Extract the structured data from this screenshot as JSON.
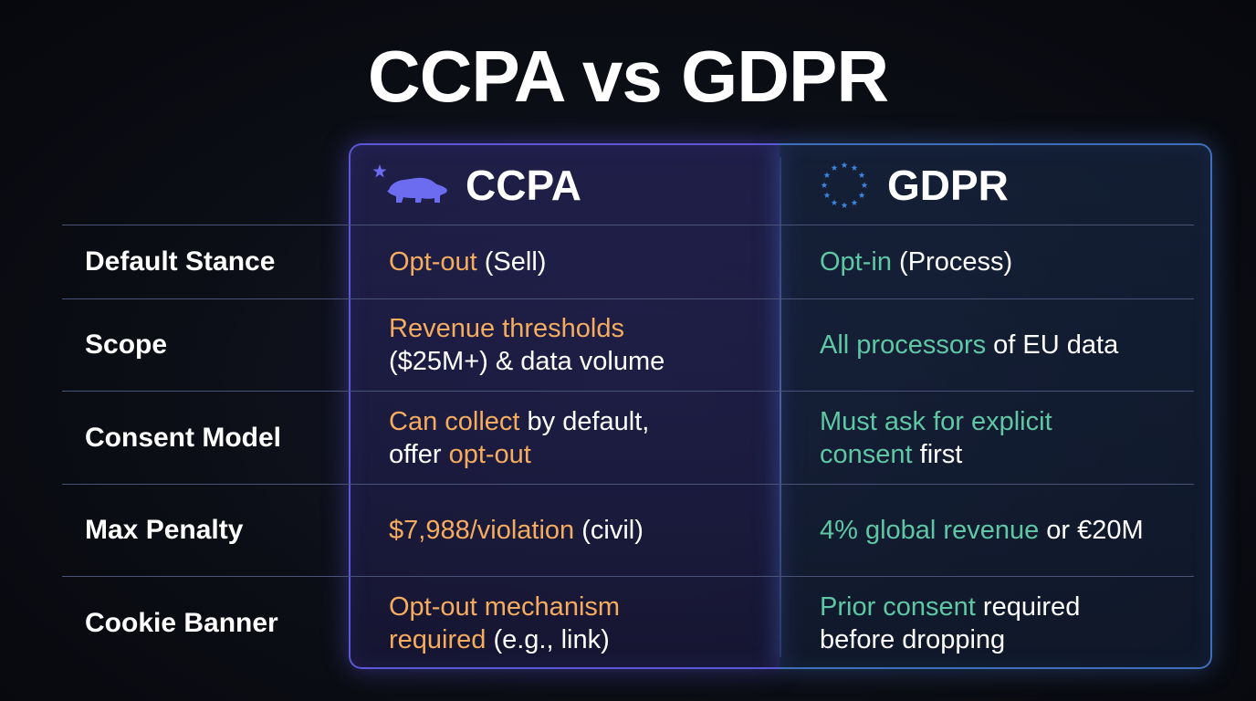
{
  "title": "CCPA vs GDPR",
  "columns": {
    "ccpa": {
      "name": "CCPA",
      "icon": "california-bear-icon"
    },
    "gdpr": {
      "name": "GDPR",
      "icon": "eu-stars-icon"
    }
  },
  "colors": {
    "ccpa_highlight": "#f5ac5e",
    "gdpr_highlight": "#5fc7a4",
    "ccpa_border": "#5b57d6",
    "gdpr_border": "#3f6fb8"
  },
  "rows": [
    {
      "label": "Default Stance",
      "ccpa": {
        "hl1": "Opt-out",
        "t1": " (Sell)"
      },
      "gdpr": {
        "hl1": "Opt-in",
        "t1": " (Process)"
      }
    },
    {
      "label": "Scope",
      "ccpa": {
        "hl1": "Revenue thresholds",
        "t1": "($25M+) & data volume"
      },
      "gdpr": {
        "hl1": "All processors",
        "t1": " of EU data"
      }
    },
    {
      "label": "Consent Model",
      "ccpa": {
        "hl1": "Can collect",
        "t1": " by default,",
        "t2": "offer ",
        "hl2": "opt-out"
      },
      "gdpr": {
        "hl1": "Must ask for explicit",
        "hl2": "consent",
        "t1": " first"
      }
    },
    {
      "label": "Max Penalty",
      "ccpa": {
        "hl1": "$7,988/violation",
        "t1": " (civil)"
      },
      "gdpr": {
        "hl1": "4% global revenue",
        "t1": " or €20M"
      }
    },
    {
      "label": "Cookie Banner",
      "ccpa": {
        "hl1": "Opt-out mechanism",
        "hl2": "required",
        "t1": " (e.g., link)"
      },
      "gdpr": {
        "hl1": "Prior consent",
        "t1": " required",
        "t2": "before dropping"
      }
    }
  ]
}
